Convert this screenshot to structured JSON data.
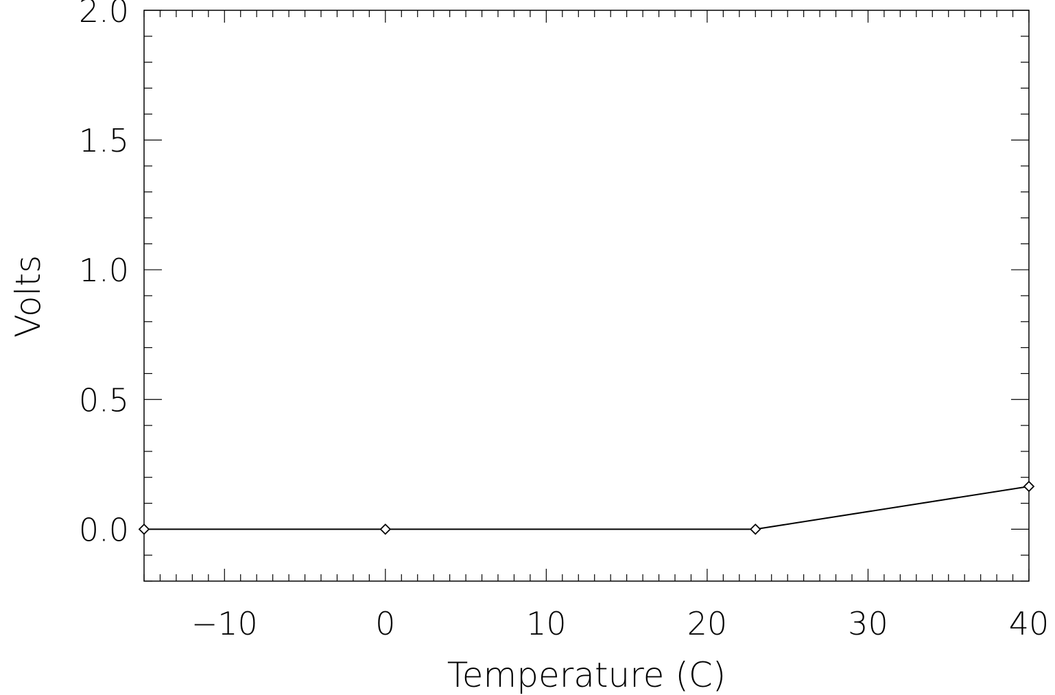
{
  "chart_data": {
    "type": "line",
    "xlabel": "Temperature (C)",
    "ylabel": "Volts",
    "xlim": [
      -15,
      40
    ],
    "ylim": [
      -0.2,
      2.0
    ],
    "x_ticks": [
      -10,
      0,
      10,
      20,
      30,
      40
    ],
    "x_tick_labels": [
      "−10",
      "0",
      "10",
      "20",
      "30",
      "40"
    ],
    "y_ticks": [
      0.0,
      0.5,
      1.0,
      1.5,
      2.0
    ],
    "y_tick_labels": [
      "0.0",
      "0.5",
      "1.0",
      "1.5",
      "2.0"
    ],
    "x_minor_step": 1,
    "y_minor_step": 0.1,
    "grid": false,
    "marker": "diamond",
    "line_color": "#000000",
    "series": [
      {
        "x": [
          -15,
          0,
          23,
          40
        ],
        "y": [
          0.0,
          0.0,
          0.0,
          0.165
        ]
      }
    ]
  }
}
